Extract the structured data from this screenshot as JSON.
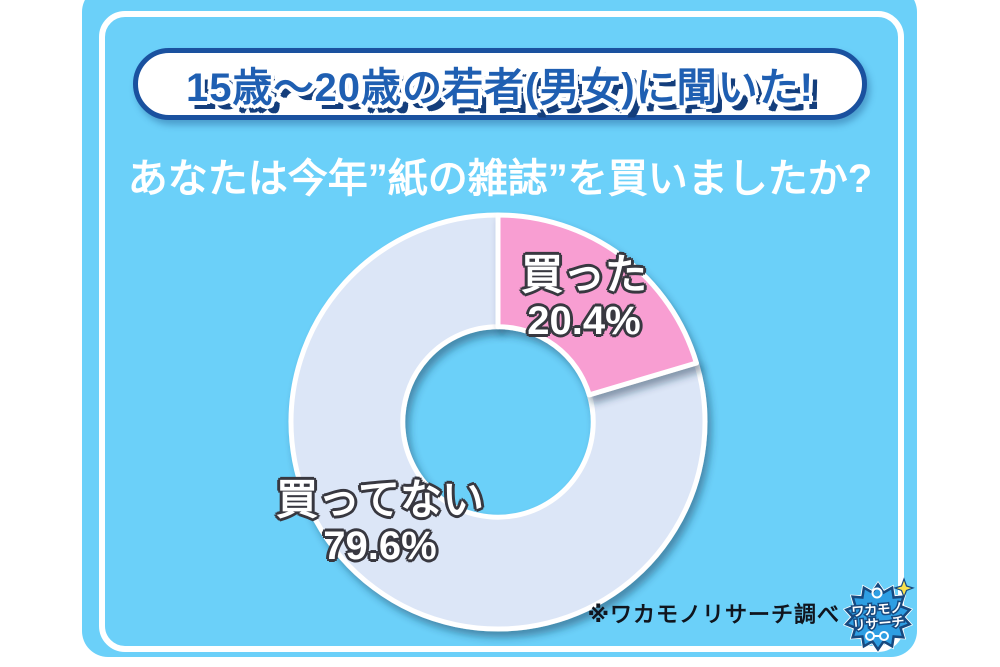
{
  "page": {
    "background_color": "#ffffff",
    "card_color": "#6BD0F9",
    "accent_dark_blue": "#1A519F"
  },
  "header": {
    "banner_text": "15歳～20歳の若者(男女)に聞いた!"
  },
  "question": {
    "text": "あなたは今年”紙の雑誌”を買いましたか?"
  },
  "chart_data": {
    "type": "pie",
    "subtype": "donut",
    "title": "あなたは今年”紙の雑誌”を買いましたか?",
    "labels": [
      "買った",
      "買ってない"
    ],
    "values": [
      20.4,
      79.6
    ],
    "display_values": [
      "20.4%",
      "79.6%"
    ],
    "colors": [
      "#F89ED2",
      "#DCE6F7"
    ],
    "start_angle_deg": 0,
    "direction": "clockwise",
    "inner_radius_ratio": 0.46,
    "legend_position": "on-slice",
    "separator_color": "#ffffff"
  },
  "attribution": {
    "text": "※ワカモノリサーチ調べ"
  },
  "logo": {
    "line1": "ワカモノ",
    "line2": "リサーチ",
    "fill_color": "#2E9EE3",
    "outline_color": "#17497F",
    "sparkle_color": "#F9E14D"
  }
}
